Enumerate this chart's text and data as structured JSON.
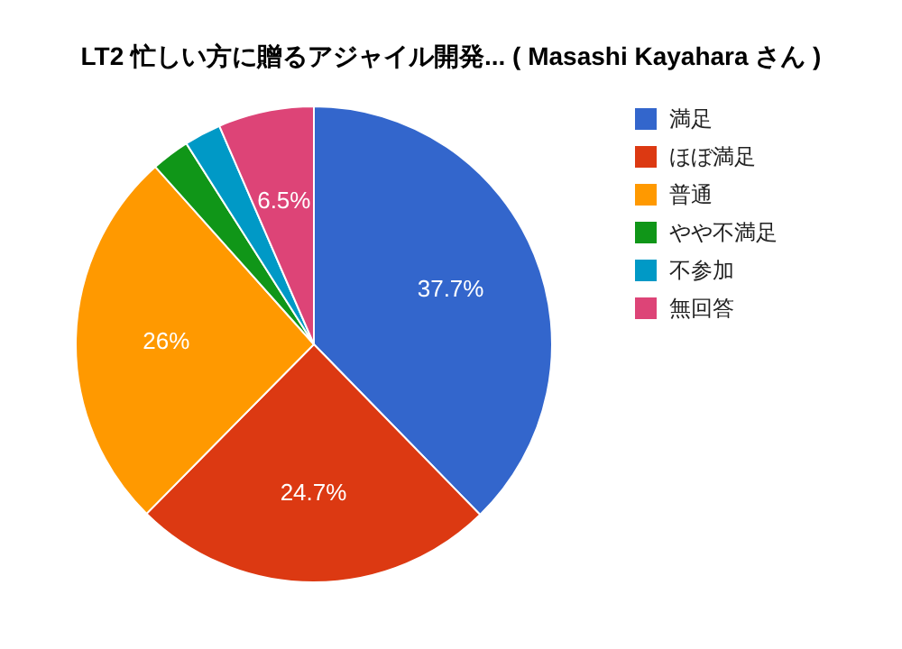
{
  "chart_data": {
    "type": "pie",
    "title": "LT2 忙しい方に贈るアジャイル開発... ( Masashi Kayahara さん )",
    "categories": [
      "満足",
      "ほぼ満足",
      "普通",
      "やや不満足",
      "不参加",
      "無回答"
    ],
    "values": [
      37.7,
      24.7,
      26,
      2.6,
      2.5,
      6.5
    ],
    "value_labels": [
      "37.7%",
      "24.7%",
      "26%",
      null,
      null,
      "6.5%"
    ],
    "colors": [
      "#3366cc",
      "#dc3912",
      "#ff9900",
      "#109618",
      "#0099c6",
      "#dd4477"
    ],
    "legend": "top right"
  }
}
